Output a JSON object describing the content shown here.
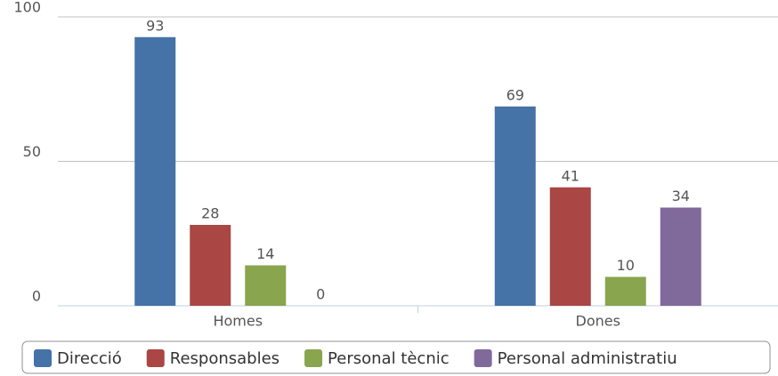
{
  "chart_data": {
    "type": "bar",
    "categories": [
      "Homes",
      "Dones"
    ],
    "series": [
      {
        "name": "Direcció",
        "color": "#4572a7",
        "values": [
          93,
          69
        ]
      },
      {
        "name": "Responsables",
        "color": "#aa4643",
        "values": [
          28,
          41
        ]
      },
      {
        "name": "Personal tècnic",
        "color": "#89a54e",
        "values": [
          14,
          10
        ]
      },
      {
        "name": "Personal administratiu",
        "color": "#80699b",
        "values": [
          0,
          34
        ]
      }
    ],
    "ylim": [
      0,
      100
    ],
    "yticks": [
      0,
      50,
      100
    ],
    "grid": true,
    "legend": "bottom"
  }
}
